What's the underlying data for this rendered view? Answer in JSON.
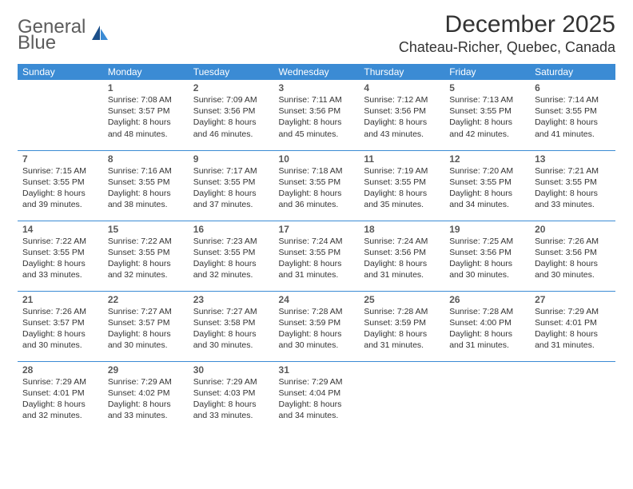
{
  "logo": {
    "line1": "General",
    "line2": "Blue"
  },
  "title": "December 2025",
  "location": "Chateau-Richer, Quebec, Canada",
  "colors": {
    "header_bg": "#3b8bd4",
    "header_text": "#ffffff",
    "cell_border": "#3b8bd4",
    "daynum_color": "#595959",
    "text_color": "#333333",
    "logo_gray": "#5c5c5c",
    "logo_blue": "#2e7cd6",
    "background": "#ffffff"
  },
  "day_headers": [
    "Sunday",
    "Monday",
    "Tuesday",
    "Wednesday",
    "Thursday",
    "Friday",
    "Saturday"
  ],
  "weeks": [
    [
      null,
      {
        "n": "1",
        "sr": "Sunrise: 7:08 AM",
        "ss": "Sunset: 3:57 PM",
        "d1": "Daylight: 8 hours",
        "d2": "and 48 minutes."
      },
      {
        "n": "2",
        "sr": "Sunrise: 7:09 AM",
        "ss": "Sunset: 3:56 PM",
        "d1": "Daylight: 8 hours",
        "d2": "and 46 minutes."
      },
      {
        "n": "3",
        "sr": "Sunrise: 7:11 AM",
        "ss": "Sunset: 3:56 PM",
        "d1": "Daylight: 8 hours",
        "d2": "and 45 minutes."
      },
      {
        "n": "4",
        "sr": "Sunrise: 7:12 AM",
        "ss": "Sunset: 3:56 PM",
        "d1": "Daylight: 8 hours",
        "d2": "and 43 minutes."
      },
      {
        "n": "5",
        "sr": "Sunrise: 7:13 AM",
        "ss": "Sunset: 3:55 PM",
        "d1": "Daylight: 8 hours",
        "d2": "and 42 minutes."
      },
      {
        "n": "6",
        "sr": "Sunrise: 7:14 AM",
        "ss": "Sunset: 3:55 PM",
        "d1": "Daylight: 8 hours",
        "d2": "and 41 minutes."
      }
    ],
    [
      {
        "n": "7",
        "sr": "Sunrise: 7:15 AM",
        "ss": "Sunset: 3:55 PM",
        "d1": "Daylight: 8 hours",
        "d2": "and 39 minutes."
      },
      {
        "n": "8",
        "sr": "Sunrise: 7:16 AM",
        "ss": "Sunset: 3:55 PM",
        "d1": "Daylight: 8 hours",
        "d2": "and 38 minutes."
      },
      {
        "n": "9",
        "sr": "Sunrise: 7:17 AM",
        "ss": "Sunset: 3:55 PM",
        "d1": "Daylight: 8 hours",
        "d2": "and 37 minutes."
      },
      {
        "n": "10",
        "sr": "Sunrise: 7:18 AM",
        "ss": "Sunset: 3:55 PM",
        "d1": "Daylight: 8 hours",
        "d2": "and 36 minutes."
      },
      {
        "n": "11",
        "sr": "Sunrise: 7:19 AM",
        "ss": "Sunset: 3:55 PM",
        "d1": "Daylight: 8 hours",
        "d2": "and 35 minutes."
      },
      {
        "n": "12",
        "sr": "Sunrise: 7:20 AM",
        "ss": "Sunset: 3:55 PM",
        "d1": "Daylight: 8 hours",
        "d2": "and 34 minutes."
      },
      {
        "n": "13",
        "sr": "Sunrise: 7:21 AM",
        "ss": "Sunset: 3:55 PM",
        "d1": "Daylight: 8 hours",
        "d2": "and 33 minutes."
      }
    ],
    [
      {
        "n": "14",
        "sr": "Sunrise: 7:22 AM",
        "ss": "Sunset: 3:55 PM",
        "d1": "Daylight: 8 hours",
        "d2": "and 33 minutes."
      },
      {
        "n": "15",
        "sr": "Sunrise: 7:22 AM",
        "ss": "Sunset: 3:55 PM",
        "d1": "Daylight: 8 hours",
        "d2": "and 32 minutes."
      },
      {
        "n": "16",
        "sr": "Sunrise: 7:23 AM",
        "ss": "Sunset: 3:55 PM",
        "d1": "Daylight: 8 hours",
        "d2": "and 32 minutes."
      },
      {
        "n": "17",
        "sr": "Sunrise: 7:24 AM",
        "ss": "Sunset: 3:55 PM",
        "d1": "Daylight: 8 hours",
        "d2": "and 31 minutes."
      },
      {
        "n": "18",
        "sr": "Sunrise: 7:24 AM",
        "ss": "Sunset: 3:56 PM",
        "d1": "Daylight: 8 hours",
        "d2": "and 31 minutes."
      },
      {
        "n": "19",
        "sr": "Sunrise: 7:25 AM",
        "ss": "Sunset: 3:56 PM",
        "d1": "Daylight: 8 hours",
        "d2": "and 30 minutes."
      },
      {
        "n": "20",
        "sr": "Sunrise: 7:26 AM",
        "ss": "Sunset: 3:56 PM",
        "d1": "Daylight: 8 hours",
        "d2": "and 30 minutes."
      }
    ],
    [
      {
        "n": "21",
        "sr": "Sunrise: 7:26 AM",
        "ss": "Sunset: 3:57 PM",
        "d1": "Daylight: 8 hours",
        "d2": "and 30 minutes."
      },
      {
        "n": "22",
        "sr": "Sunrise: 7:27 AM",
        "ss": "Sunset: 3:57 PM",
        "d1": "Daylight: 8 hours",
        "d2": "and 30 minutes."
      },
      {
        "n": "23",
        "sr": "Sunrise: 7:27 AM",
        "ss": "Sunset: 3:58 PM",
        "d1": "Daylight: 8 hours",
        "d2": "and 30 minutes."
      },
      {
        "n": "24",
        "sr": "Sunrise: 7:28 AM",
        "ss": "Sunset: 3:59 PM",
        "d1": "Daylight: 8 hours",
        "d2": "and 30 minutes."
      },
      {
        "n": "25",
        "sr": "Sunrise: 7:28 AM",
        "ss": "Sunset: 3:59 PM",
        "d1": "Daylight: 8 hours",
        "d2": "and 31 minutes."
      },
      {
        "n": "26",
        "sr": "Sunrise: 7:28 AM",
        "ss": "Sunset: 4:00 PM",
        "d1": "Daylight: 8 hours",
        "d2": "and 31 minutes."
      },
      {
        "n": "27",
        "sr": "Sunrise: 7:29 AM",
        "ss": "Sunset: 4:01 PM",
        "d1": "Daylight: 8 hours",
        "d2": "and 31 minutes."
      }
    ],
    [
      {
        "n": "28",
        "sr": "Sunrise: 7:29 AM",
        "ss": "Sunset: 4:01 PM",
        "d1": "Daylight: 8 hours",
        "d2": "and 32 minutes."
      },
      {
        "n": "29",
        "sr": "Sunrise: 7:29 AM",
        "ss": "Sunset: 4:02 PM",
        "d1": "Daylight: 8 hours",
        "d2": "and 33 minutes."
      },
      {
        "n": "30",
        "sr": "Sunrise: 7:29 AM",
        "ss": "Sunset: 4:03 PM",
        "d1": "Daylight: 8 hours",
        "d2": "and 33 minutes."
      },
      {
        "n": "31",
        "sr": "Sunrise: 7:29 AM",
        "ss": "Sunset: 4:04 PM",
        "d1": "Daylight: 8 hours",
        "d2": "and 34 minutes."
      },
      null,
      null,
      null
    ]
  ]
}
